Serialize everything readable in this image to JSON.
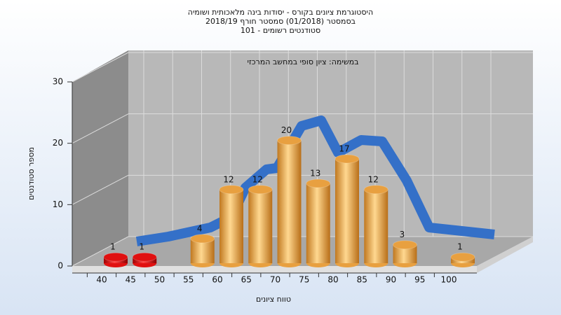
{
  "chart_data": {
    "type": "bar",
    "title": "היסטוגרמת ציונים בקורס - יסודות בינה מלאכותית ושומיה",
    "subtitle": "בסמסטר  (01/2018)  סמסטר חורף 2018/19",
    "subtitle2": "סטודנטים רשומים - 101",
    "annotation": "במשימה: ציון סופי במחשב המרכזי",
    "x_label": "טווח ציונים",
    "y_label": "מספר סטודנטים",
    "categories": [
      40,
      45,
      50,
      55,
      60,
      65,
      70,
      75,
      80,
      85,
      90,
      95,
      100
    ],
    "values": [
      1,
      1,
      null,
      4,
      12,
      12,
      20,
      13,
      17,
      12,
      3,
      null,
      1
    ],
    "colors": [
      "#e01010",
      "#e01010",
      null,
      "#e8a040",
      "#e8a040",
      "#e8a040",
      "#e8a040",
      "#e8a040",
      "#e8a040",
      "#e8a040",
      "#e8a040",
      null,
      "#e8a040"
    ],
    "ylim": [
      0,
      30
    ],
    "yticks": [
      0,
      10,
      20,
      30
    ],
    "grid": true
  }
}
